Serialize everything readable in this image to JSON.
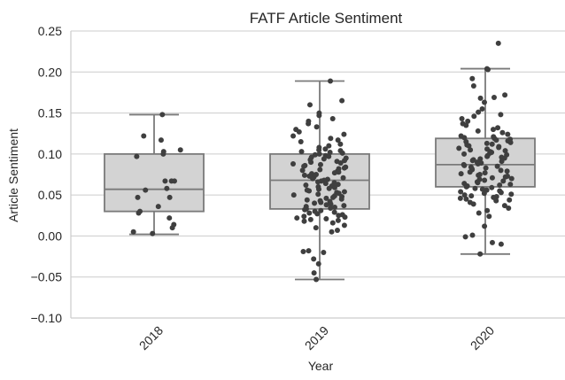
{
  "chart_data": {
    "type": "box",
    "title": "FATF Article Sentiment",
    "xlabel": "Year",
    "ylabel": "Article Sentiment",
    "ylim": [
      -0.1,
      0.25
    ],
    "yticks": [
      -0.1,
      -0.05,
      0.0,
      0.05,
      0.1,
      0.15,
      0.2,
      0.25
    ],
    "ytick_labels": [
      "−0.10",
      "−0.05",
      "0.00",
      "0.05",
      "0.10",
      "0.15",
      "0.20",
      "0.25"
    ],
    "categories": [
      "2018",
      "2019",
      "2020"
    ],
    "grid": true,
    "colors": {
      "box_fill": "#d3d3d3",
      "box_edge": "#7a7a7a",
      "point": "#3f3f3f",
      "grid": "#cccccc"
    },
    "boxes": [
      {
        "category": "2018",
        "whislo": 0.002,
        "q1": 0.03,
        "median": 0.057,
        "q3": 0.1,
        "whishi": 0.148
      },
      {
        "category": "2019",
        "whislo": -0.053,
        "q1": 0.033,
        "median": 0.068,
        "q3": 0.1,
        "whishi": 0.189
      },
      {
        "category": "2020",
        "whislo": -0.022,
        "q1": 0.06,
        "median": 0.087,
        "q3": 0.119,
        "whishi": 0.204
      }
    ],
    "points": [
      {
        "category": "2018",
        "values": [
          0.148,
          0.122,
          0.117,
          0.105,
          0.103,
          0.1,
          0.097,
          0.067,
          0.067,
          0.067,
          0.058,
          0.056,
          0.047,
          0.047,
          0.036,
          0.03,
          0.028,
          0.022,
          0.014,
          0.01,
          0.005,
          0.003
        ]
      },
      {
        "category": "2019",
        "values": [
          0.189,
          0.165,
          0.16,
          0.15,
          0.147,
          0.143,
          0.14,
          0.137,
          0.133,
          0.13,
          0.127,
          0.124,
          0.122,
          0.119,
          0.117,
          0.115,
          0.112,
          0.11,
          0.108,
          0.106,
          0.105,
          0.104,
          0.103,
          0.102,
          0.101,
          0.1,
          0.099,
          0.098,
          0.097,
          0.096,
          0.095,
          0.094,
          0.093,
          0.092,
          0.091,
          0.09,
          0.089,
          0.088,
          0.087,
          0.086,
          0.085,
          0.084,
          0.083,
          0.082,
          0.081,
          0.08,
          0.079,
          0.078,
          0.077,
          0.076,
          0.075,
          0.074,
          0.073,
          0.072,
          0.071,
          0.07,
          0.069,
          0.068,
          0.067,
          0.066,
          0.065,
          0.064,
          0.063,
          0.062,
          0.061,
          0.06,
          0.059,
          0.058,
          0.057,
          0.056,
          0.055,
          0.054,
          0.053,
          0.052,
          0.051,
          0.05,
          0.049,
          0.048,
          0.047,
          0.046,
          0.045,
          0.044,
          0.043,
          0.042,
          0.041,
          0.04,
          0.039,
          0.038,
          0.037,
          0.036,
          0.035,
          0.034,
          0.033,
          0.032,
          0.031,
          0.03,
          0.029,
          0.028,
          0.027,
          0.026,
          0.025,
          0.024,
          0.023,
          0.022,
          0.021,
          0.02,
          0.019,
          0.018,
          0.016,
          0.013,
          0.01,
          0.007,
          0.005,
          -0.018,
          -0.019,
          -0.02,
          -0.028,
          -0.034,
          -0.045,
          -0.053
        ]
      },
      {
        "category": "2020",
        "values": [
          0.235,
          0.204,
          0.203,
          0.192,
          0.183,
          0.172,
          0.169,
          0.168,
          0.163,
          0.155,
          0.151,
          0.148,
          0.146,
          0.143,
          0.14,
          0.137,
          0.135,
          0.132,
          0.13,
          0.128,
          0.126,
          0.124,
          0.122,
          0.121,
          0.12,
          0.119,
          0.118,
          0.117,
          0.116,
          0.115,
          0.114,
          0.113,
          0.112,
          0.111,
          0.11,
          0.109,
          0.108,
          0.107,
          0.106,
          0.105,
          0.104,
          0.103,
          0.102,
          0.101,
          0.1,
          0.099,
          0.098,
          0.097,
          0.096,
          0.095,
          0.094,
          0.093,
          0.092,
          0.091,
          0.09,
          0.089,
          0.088,
          0.087,
          0.086,
          0.085,
          0.084,
          0.083,
          0.082,
          0.081,
          0.08,
          0.079,
          0.078,
          0.077,
          0.076,
          0.075,
          0.074,
          0.073,
          0.072,
          0.071,
          0.07,
          0.069,
          0.068,
          0.067,
          0.066,
          0.065,
          0.064,
          0.063,
          0.062,
          0.061,
          0.06,
          0.059,
          0.058,
          0.057,
          0.056,
          0.055,
          0.054,
          0.053,
          0.052,
          0.051,
          0.05,
          0.049,
          0.048,
          0.047,
          0.046,
          0.045,
          0.044,
          0.043,
          0.041,
          0.039,
          0.037,
          0.034,
          0.031,
          0.028,
          0.024,
          0.012,
          0.001,
          -0.001,
          -0.008,
          -0.01,
          -0.022
        ]
      }
    ]
  }
}
